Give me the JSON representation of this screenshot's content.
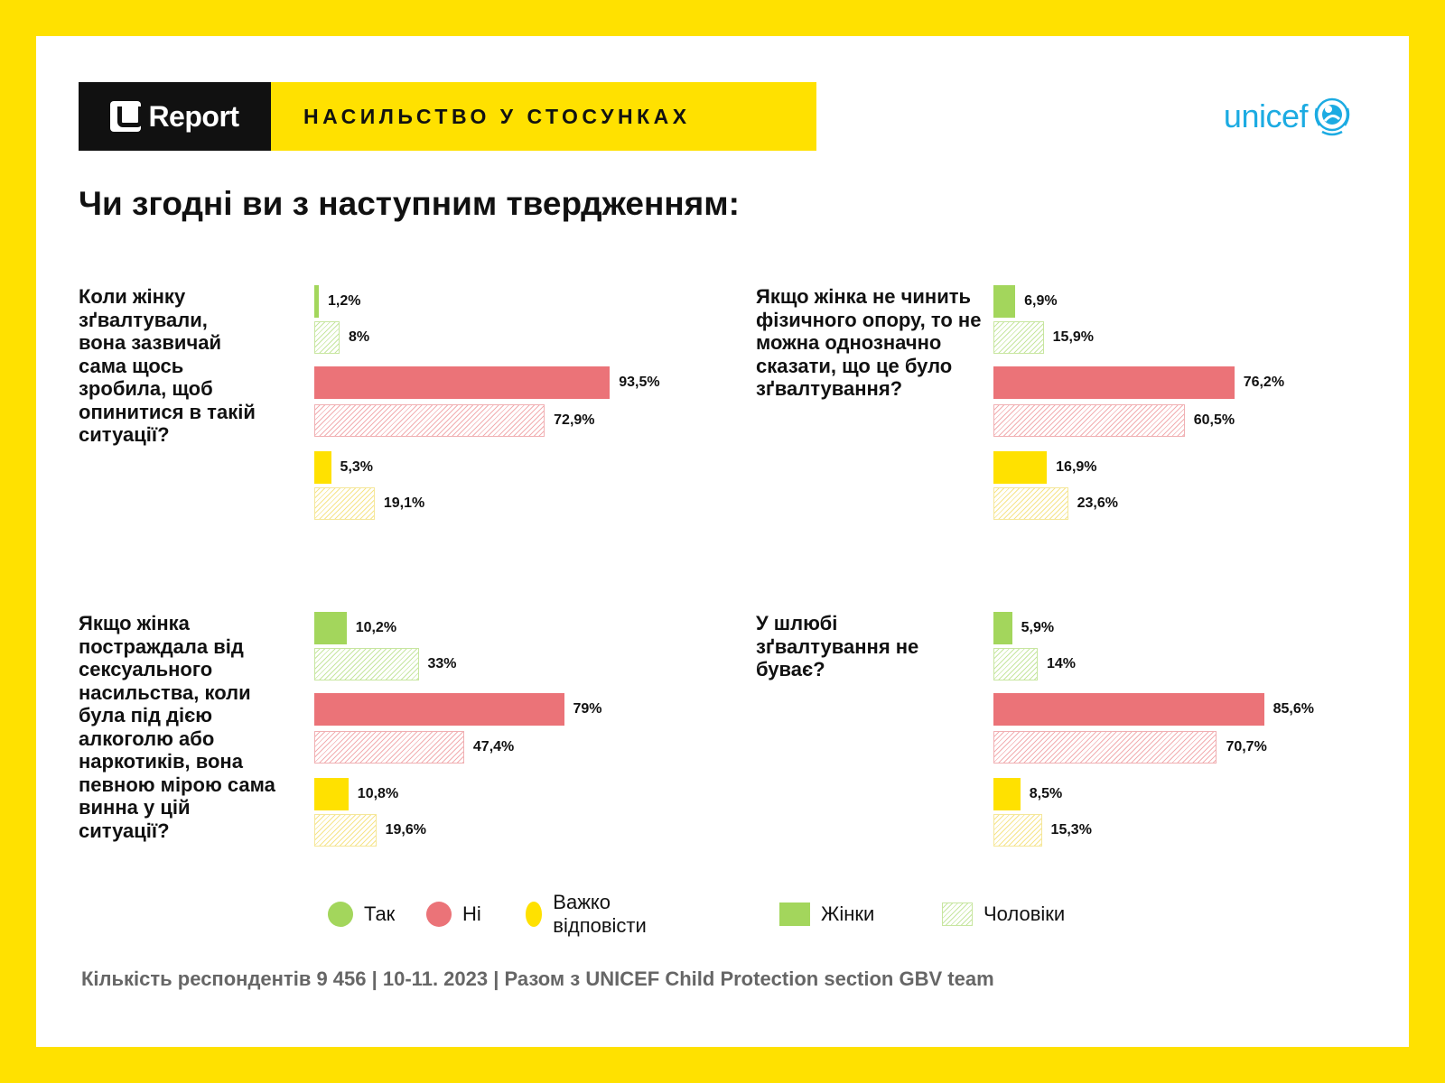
{
  "header": {
    "brand": "Report",
    "title": "НАСИЛЬСТВО У СТОСУНКАХ",
    "partner": "unicef"
  },
  "question_title": "Чи згодні ви з наступним твердженням:",
  "colors": {
    "tak": "#A3D65C",
    "ni": "#EB7378",
    "vazhko": "#FFE100",
    "accent_yellow": "#FFE100",
    "unicef_blue": "#1CABE2"
  },
  "chart_data": [
    {
      "type": "bar",
      "question": "Коли жінку зґвалтували, вона зазвичай сама щось зробила, щоб опинитися в такій ситуації?",
      "categories": [
        "Так",
        "Ні",
        "Важко відповісти"
      ],
      "series": [
        {
          "name": "Жінки",
          "values": [
            1.2,
            93.5,
            5.3
          ],
          "labels": [
            "1,2%",
            "93,5%",
            "5,3%"
          ]
        },
        {
          "name": "Чоловіки",
          "values": [
            8,
            72.9,
            19.1
          ],
          "labels": [
            "8%",
            "72,9%",
            "19,1%"
          ]
        }
      ],
      "xlim": [
        0,
        100
      ]
    },
    {
      "type": "bar",
      "question": "Якщо жінка не чинить фізичного опору, то не можна однозначно сказати, що це було зґвалтування?",
      "categories": [
        "Так",
        "Ні",
        "Важко відповісти"
      ],
      "series": [
        {
          "name": "Жінки",
          "values": [
            6.9,
            76.2,
            16.9
          ],
          "labels": [
            "6,9%",
            "76,2%",
            "16,9%"
          ]
        },
        {
          "name": "Чоловіки",
          "values": [
            15.9,
            60.5,
            23.6
          ],
          "labels": [
            "15,9%",
            "60,5%",
            "23,6%"
          ]
        }
      ],
      "xlim": [
        0,
        100
      ]
    },
    {
      "type": "bar",
      "question": "Якщо жінка постраждала від сексуального насильства, коли була під дією алкоголю або наркотиків, вона певною мірою сама винна у цій ситуації?",
      "categories": [
        "Так",
        "Ні",
        "Важко відповісти"
      ],
      "series": [
        {
          "name": "Жінки",
          "values": [
            10.2,
            79,
            10.8
          ],
          "labels": [
            "10,2%",
            "79%",
            "10,8%"
          ]
        },
        {
          "name": "Чоловіки",
          "values": [
            33,
            47.4,
            19.6
          ],
          "labels": [
            "33%",
            "47,4%",
            "19,6%"
          ]
        }
      ],
      "xlim": [
        0,
        100
      ]
    },
    {
      "type": "bar",
      "question": "У шлюбі зґвалтування не буває?",
      "categories": [
        "Так",
        "Ні",
        "Важко відповісти"
      ],
      "series": [
        {
          "name": "Жінки",
          "values": [
            5.9,
            85.6,
            8.5
          ],
          "labels": [
            "5,9%",
            "85,6%",
            "8,5%"
          ]
        },
        {
          "name": "Чоловіки",
          "values": [
            14,
            70.7,
            15.3
          ],
          "labels": [
            "14%",
            "70,7%",
            "15,3%"
          ]
        }
      ],
      "xlim": [
        0,
        100
      ]
    }
  ],
  "legend": {
    "tak": "Так",
    "ni": "Ні",
    "vazhko": "Важко відповісти",
    "women": "Жінки",
    "men": "Чоловіки"
  },
  "footer": "Кількість респондентів 9 456 | 10-11. 2023 | Разом з UNICEF Child Protection section GBV team"
}
